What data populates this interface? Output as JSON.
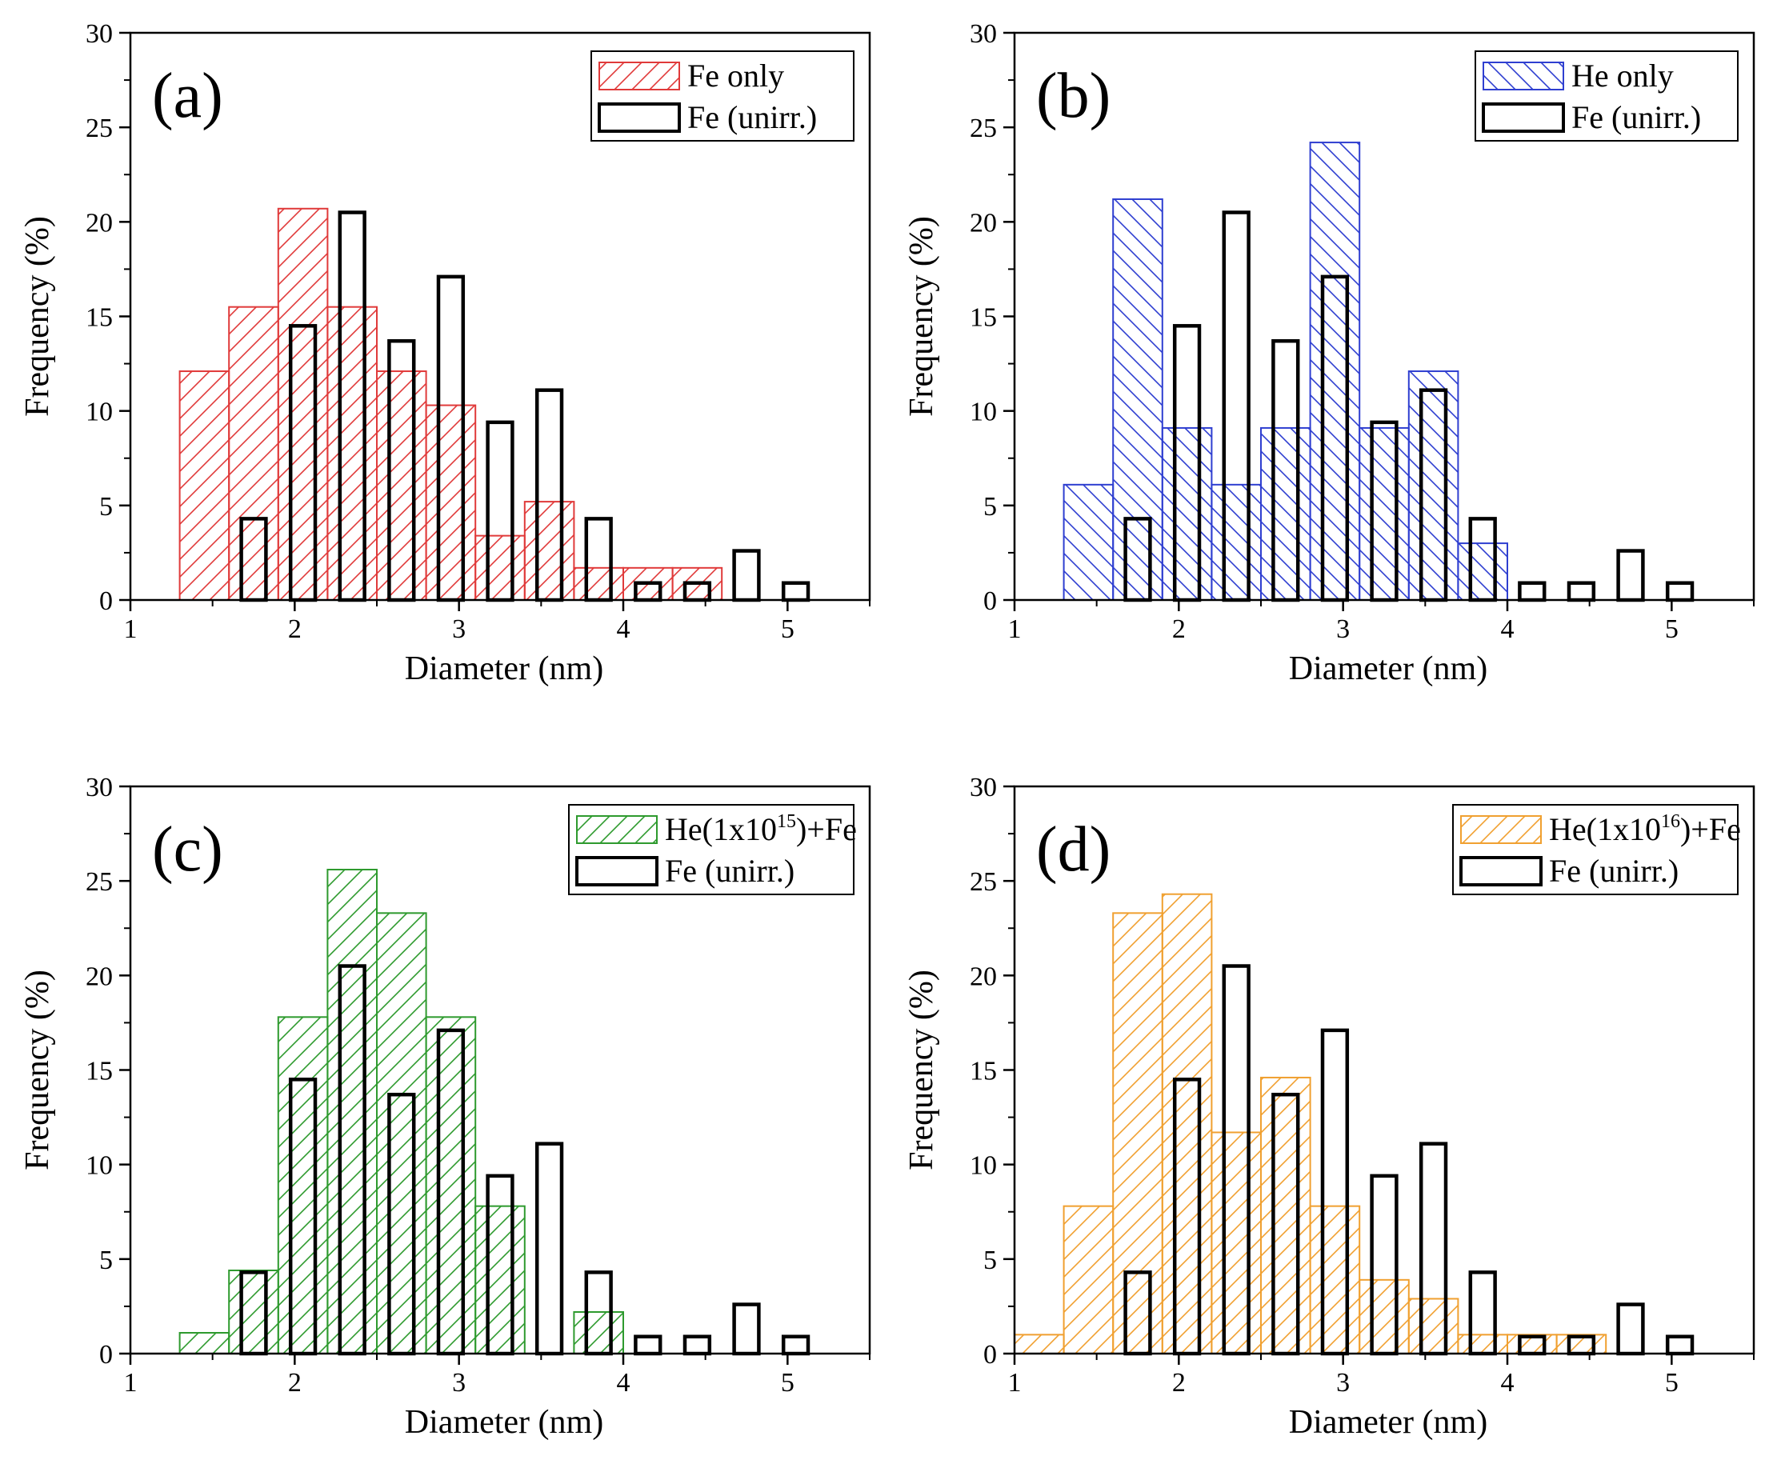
{
  "chart_data": [
    {
      "type": "bar",
      "panel_label": "(a)",
      "xlabel": "Diameter (nm)",
      "ylabel": "Frequency (%)",
      "xlim": [
        1,
        5.5
      ],
      "ylim": [
        0,
        30
      ],
      "xticks": [
        "1",
        "2",
        "3",
        "4",
        "5"
      ],
      "yticks": [
        "0",
        "5",
        "10",
        "15",
        "20",
        "25",
        "30"
      ],
      "legend": {
        "position": "top-right",
        "entries": [
          {
            "text": "Fe only",
            "sup": "",
            "after": "",
            "style": "hatch-fwd",
            "color": "#e03a3a"
          },
          {
            "text": "Fe (unirr.)",
            "sup": "",
            "after": "",
            "style": "outline",
            "color": "#000000"
          }
        ]
      },
      "series": [
        {
          "name": "Fe only",
          "style": "hatch-fwd",
          "color": "#e03a3a",
          "x": [
            1.45,
            1.75,
            2.05,
            2.35,
            2.65,
            2.95,
            3.25,
            3.55,
            3.85,
            4.15,
            4.45
          ],
          "values": [
            12.1,
            15.5,
            20.7,
            15.5,
            12.1,
            10.3,
            3.4,
            5.2,
            1.7,
            1.7,
            1.7
          ]
        },
        {
          "name": "Fe (unirr.)",
          "style": "outline",
          "color": "#000000",
          "x": [
            1.75,
            2.05,
            2.35,
            2.65,
            2.95,
            3.25,
            3.55,
            3.85,
            4.15,
            4.45,
            4.75,
            5.05
          ],
          "values": [
            4.3,
            14.5,
            20.5,
            13.7,
            17.1,
            9.4,
            11.1,
            4.3,
            0.9,
            0.9,
            2.6,
            0.9
          ]
        }
      ]
    },
    {
      "type": "bar",
      "panel_label": "(b)",
      "xlabel": "Diameter (nm)",
      "ylabel": "Frequency (%)",
      "xlim": [
        1,
        5.5
      ],
      "ylim": [
        0,
        30
      ],
      "xticks": [
        "1",
        "2",
        "3",
        "4",
        "5"
      ],
      "yticks": [
        "0",
        "5",
        "10",
        "15",
        "20",
        "25",
        "30"
      ],
      "legend": {
        "position": "top-right",
        "entries": [
          {
            "text": "He only",
            "sup": "",
            "after": "",
            "style": "hatch-back",
            "color": "#2f3fd0"
          },
          {
            "text": "Fe (unirr.)",
            "sup": "",
            "after": "",
            "style": "outline",
            "color": "#000000"
          }
        ]
      },
      "series": [
        {
          "name": "He only",
          "style": "hatch-back",
          "color": "#2f3fd0",
          "x": [
            1.45,
            1.75,
            2.05,
            2.35,
            2.65,
            2.95,
            3.25,
            3.55,
            3.85
          ],
          "values": [
            6.1,
            21.2,
            9.1,
            6.1,
            9.1,
            24.2,
            9.1,
            12.1,
            3.0
          ]
        },
        {
          "name": "Fe (unirr.)",
          "style": "outline",
          "color": "#000000",
          "x": [
            1.75,
            2.05,
            2.35,
            2.65,
            2.95,
            3.25,
            3.55,
            3.85,
            4.15,
            4.45,
            4.75,
            5.05
          ],
          "values": [
            4.3,
            14.5,
            20.5,
            13.7,
            17.1,
            9.4,
            11.1,
            4.3,
            0.9,
            0.9,
            2.6,
            0.9
          ]
        }
      ]
    },
    {
      "type": "bar",
      "panel_label": "(c)",
      "xlabel": "Diameter (nm)",
      "ylabel": "Frequency (%)",
      "xlim": [
        1,
        5.5
      ],
      "ylim": [
        0,
        30
      ],
      "xticks": [
        "1",
        "2",
        "3",
        "4",
        "5"
      ],
      "yticks": [
        "0",
        "5",
        "10",
        "15",
        "20",
        "25",
        "30"
      ],
      "legend": {
        "position": "top-right",
        "entries": [
          {
            "text": "He(1x10",
            "sup": "15",
            "after": ")+Fe",
            "style": "hatch-fwd",
            "color": "#2e9a2e"
          },
          {
            "text": "Fe (unirr.)",
            "sup": "",
            "after": "",
            "style": "outline",
            "color": "#000000"
          }
        ]
      },
      "series": [
        {
          "name": "He(1x10^15)+Fe",
          "style": "hatch-fwd",
          "color": "#2e9a2e",
          "x": [
            1.45,
            1.75,
            2.05,
            2.35,
            2.65,
            2.95,
            3.25,
            3.55,
            3.85
          ],
          "values": [
            1.1,
            4.4,
            17.8,
            25.6,
            23.3,
            17.8,
            7.8,
            0,
            2.2
          ]
        },
        {
          "name": "Fe (unirr.)",
          "style": "outline",
          "color": "#000000",
          "x": [
            1.75,
            2.05,
            2.35,
            2.65,
            2.95,
            3.25,
            3.55,
            3.85,
            4.15,
            4.45,
            4.75,
            5.05
          ],
          "values": [
            4.3,
            14.5,
            20.5,
            13.7,
            17.1,
            9.4,
            11.1,
            4.3,
            0.9,
            0.9,
            2.6,
            0.9
          ]
        }
      ]
    },
    {
      "type": "bar",
      "panel_label": "(d)",
      "xlabel": "Diameter (nm)",
      "ylabel": "Frequency (%)",
      "xlim": [
        1,
        5.5
      ],
      "ylim": [
        0,
        30
      ],
      "xticks": [
        "1",
        "2",
        "3",
        "4",
        "5"
      ],
      "yticks": [
        "0",
        "5",
        "10",
        "15",
        "20",
        "25",
        "30"
      ],
      "legend": {
        "position": "top-right",
        "entries": [
          {
            "text": "He(1x10",
            "sup": "16",
            "after": ")+Fe",
            "style": "hatch-fwd",
            "color": "#f0a030"
          },
          {
            "text": "Fe (unirr.)",
            "sup": "",
            "after": "",
            "style": "outline",
            "color": "#000000"
          }
        ]
      },
      "series": [
        {
          "name": "He(1x10^16)+Fe",
          "style": "hatch-fwd",
          "color": "#f0a030",
          "x": [
            1.15,
            1.45,
            1.75,
            2.05,
            2.35,
            2.65,
            2.95,
            3.25,
            3.55,
            3.85,
            4.15,
            4.45
          ],
          "values": [
            1.0,
            7.8,
            23.3,
            24.3,
            11.7,
            14.6,
            7.8,
            3.9,
            2.9,
            1.0,
            1.0,
            1.0
          ]
        },
        {
          "name": "Fe (unirr.)",
          "style": "outline",
          "color": "#000000",
          "x": [
            1.75,
            2.05,
            2.35,
            2.65,
            2.95,
            3.25,
            3.55,
            3.85,
            4.15,
            4.45,
            4.75,
            5.05
          ],
          "values": [
            4.3,
            14.5,
            20.5,
            13.7,
            17.1,
            9.4,
            11.1,
            4.3,
            0.9,
            0.9,
            2.6,
            0.9
          ]
        }
      ]
    }
  ]
}
